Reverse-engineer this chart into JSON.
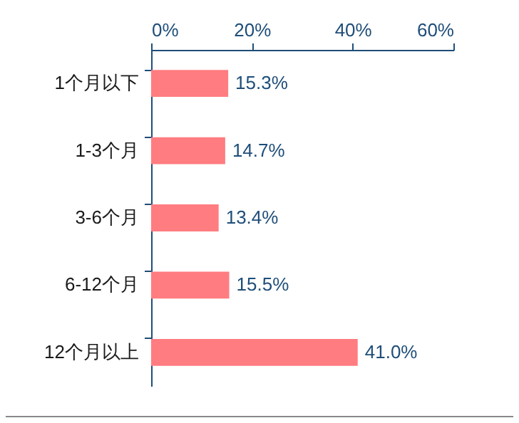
{
  "chart_data": {
    "type": "bar",
    "orientation": "horizontal",
    "categories": [
      "1个月以下",
      "1-3个月",
      "3-6个月",
      "6-12个月",
      "12个月以上"
    ],
    "values": [
      15.3,
      14.7,
      13.4,
      15.5,
      41.0
    ],
    "value_labels": [
      "15.3%",
      "14.7%",
      "13.4%",
      "15.5%",
      "41.0%"
    ],
    "color": "#ff7c80",
    "xlim": [
      0,
      60
    ],
    "xticks": [
      {
        "value": 0,
        "label": "0%"
      },
      {
        "value": 20,
        "label": "20%"
      },
      {
        "value": 40,
        "label": "40%"
      },
      {
        "value": 60,
        "label": "60%"
      }
    ],
    "grid": false
  }
}
